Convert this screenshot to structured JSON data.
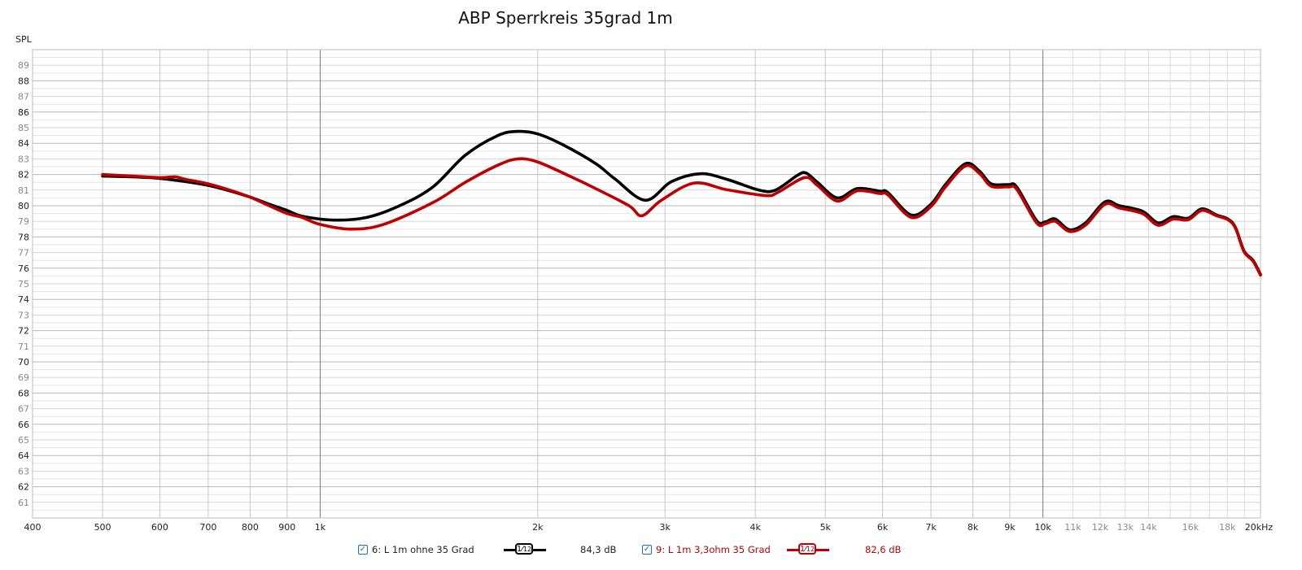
{
  "chart_data": {
    "type": "line",
    "title": "ABP Sperrkreis 35grad 1m",
    "ylabel": "SPL",
    "xlabel": "Hz",
    "xscale": "log",
    "xlim": [
      400,
      20000
    ],
    "ylim": [
      60,
      90
    ],
    "grid": true,
    "y_ticks": [
      61,
      62,
      63,
      64,
      65,
      66,
      67,
      68,
      69,
      70,
      71,
      72,
      73,
      74,
      75,
      76,
      77,
      78,
      79,
      80,
      81,
      82,
      83,
      84,
      85,
      86,
      87,
      88,
      89
    ],
    "x_ticks": [
      {
        "f": 400,
        "label": "400",
        "minor": false
      },
      {
        "f": 500,
        "label": "500",
        "minor": false
      },
      {
        "f": 600,
        "label": "600",
        "minor": false
      },
      {
        "f": 700,
        "label": "700",
        "minor": false
      },
      {
        "f": 800,
        "label": "800",
        "minor": false
      },
      {
        "f": 900,
        "label": "900",
        "minor": false
      },
      {
        "f": 1000,
        "label": "1k",
        "minor": false
      },
      {
        "f": 2000,
        "label": "2k",
        "minor": false
      },
      {
        "f": 3000,
        "label": "3k",
        "minor": false
      },
      {
        "f": 4000,
        "label": "4k",
        "minor": false
      },
      {
        "f": 5000,
        "label": "5k",
        "minor": false
      },
      {
        "f": 6000,
        "label": "6k",
        "minor": false
      },
      {
        "f": 7000,
        "label": "7k",
        "minor": false
      },
      {
        "f": 8000,
        "label": "8k",
        "minor": false
      },
      {
        "f": 9000,
        "label": "9k",
        "minor": false
      },
      {
        "f": 10000,
        "label": "10k",
        "minor": false
      },
      {
        "f": 11000,
        "label": "11k",
        "minor": true
      },
      {
        "f": 12000,
        "label": "12k",
        "minor": true
      },
      {
        "f": 13000,
        "label": "13k",
        "minor": true
      },
      {
        "f": 14000,
        "label": "14k",
        "minor": true
      },
      {
        "f": 16000,
        "label": "16k",
        "minor": true
      },
      {
        "f": 18000,
        "label": "18k",
        "minor": true
      },
      {
        "f": 20000,
        "label": "20kHz",
        "minor": false
      }
    ],
    "series": [
      {
        "name": "6: L 1m ohne 35 Grad",
        "color": "#000000",
        "smoothing": "1/12",
        "cursor_value": "84,3 dB",
        "x": [
          500,
          550,
          600,
          650,
          700,
          750,
          800,
          850,
          900,
          944,
          1047,
          1160,
          1288,
          1432,
          1588,
          1762,
          1876,
          2000,
          2168,
          2405,
          2560,
          2818,
          3062,
          3359,
          3649,
          4047,
          4265,
          4575,
          4700,
          4875,
          5195,
          5535,
          5953,
          6100,
          6575,
          7000,
          7330,
          7817,
          8176,
          8480,
          8960,
          9200,
          9800,
          10080,
          10400,
          10890,
          11450,
          12190,
          12760,
          13730,
          14430,
          15150,
          15880,
          16600,
          17400,
          18030,
          18470,
          18980,
          19530,
          20000
        ],
        "y": [
          81.9,
          81.85,
          81.75,
          81.55,
          81.3,
          80.95,
          80.55,
          80.1,
          79.7,
          79.33,
          79.08,
          79.25,
          80.0,
          81.2,
          83.24,
          84.5,
          84.76,
          84.6,
          83.9,
          82.7,
          81.7,
          80.35,
          81.54,
          82.05,
          81.7,
          81.0,
          81.0,
          81.95,
          82.1,
          81.5,
          80.5,
          81.1,
          80.93,
          80.85,
          79.4,
          80.1,
          81.35,
          82.7,
          82.2,
          81.4,
          81.35,
          81.2,
          79.05,
          78.97,
          79.15,
          78.46,
          78.9,
          80.25,
          80.0,
          79.65,
          78.9,
          79.3,
          79.2,
          79.8,
          79.4,
          79.15,
          78.6,
          77.1,
          76.5,
          75.6
        ]
      },
      {
        "name": "9: L 1m 3,3ohm 35 Grad",
        "color": "#c00000",
        "smoothing": "1/12",
        "cursor_value": "82,6 dB",
        "x": [
          500,
          550,
          600,
          630,
          650,
          700,
          750,
          800,
          850,
          900,
          944,
          1000,
          1102,
          1223,
          1432,
          1588,
          1762,
          1876,
          2000,
          2213,
          2405,
          2675,
          2788,
          2966,
          3291,
          3649,
          4133,
          4300,
          4680,
          4875,
          5195,
          5535,
          5953,
          6100,
          6575,
          7000,
          7330,
          7817,
          8176,
          8480,
          8960,
          9200,
          9800,
          10080,
          10400,
          10890,
          11450,
          12190,
          12760,
          13730,
          14430,
          15150,
          15880,
          16600,
          17400,
          18030,
          18470,
          18980,
          19530,
          20000
        ],
        "y": [
          82.0,
          81.9,
          81.8,
          81.85,
          81.7,
          81.4,
          81.0,
          80.55,
          80.0,
          79.5,
          79.25,
          78.8,
          78.5,
          78.8,
          80.2,
          81.5,
          82.6,
          83.0,
          82.8,
          81.9,
          81.1,
          80.0,
          79.36,
          80.35,
          81.45,
          81.03,
          80.65,
          80.86,
          81.8,
          81.3,
          80.3,
          80.95,
          80.78,
          80.7,
          79.25,
          79.95,
          81.2,
          82.55,
          82.05,
          81.25,
          81.2,
          81.05,
          78.9,
          78.85,
          79.0,
          78.35,
          78.75,
          80.1,
          79.85,
          79.5,
          78.75,
          79.15,
          79.1,
          79.7,
          79.35,
          79.1,
          78.55,
          77.05,
          76.45,
          75.55
        ]
      }
    ]
  },
  "legend": {
    "items": [
      {
        "label": "6: L 1m ohne 35 Grad",
        "smoothing_num": "1",
        "smoothing_den": "12",
        "value": "84,3 dB",
        "color": "#000000",
        "checked": true
      },
      {
        "label": "9: L 1m 3,3ohm 35 Grad",
        "smoothing_num": "1",
        "smoothing_den": "12",
        "value": "82,6 dB",
        "color": "#c00000",
        "checked": true
      }
    ]
  }
}
